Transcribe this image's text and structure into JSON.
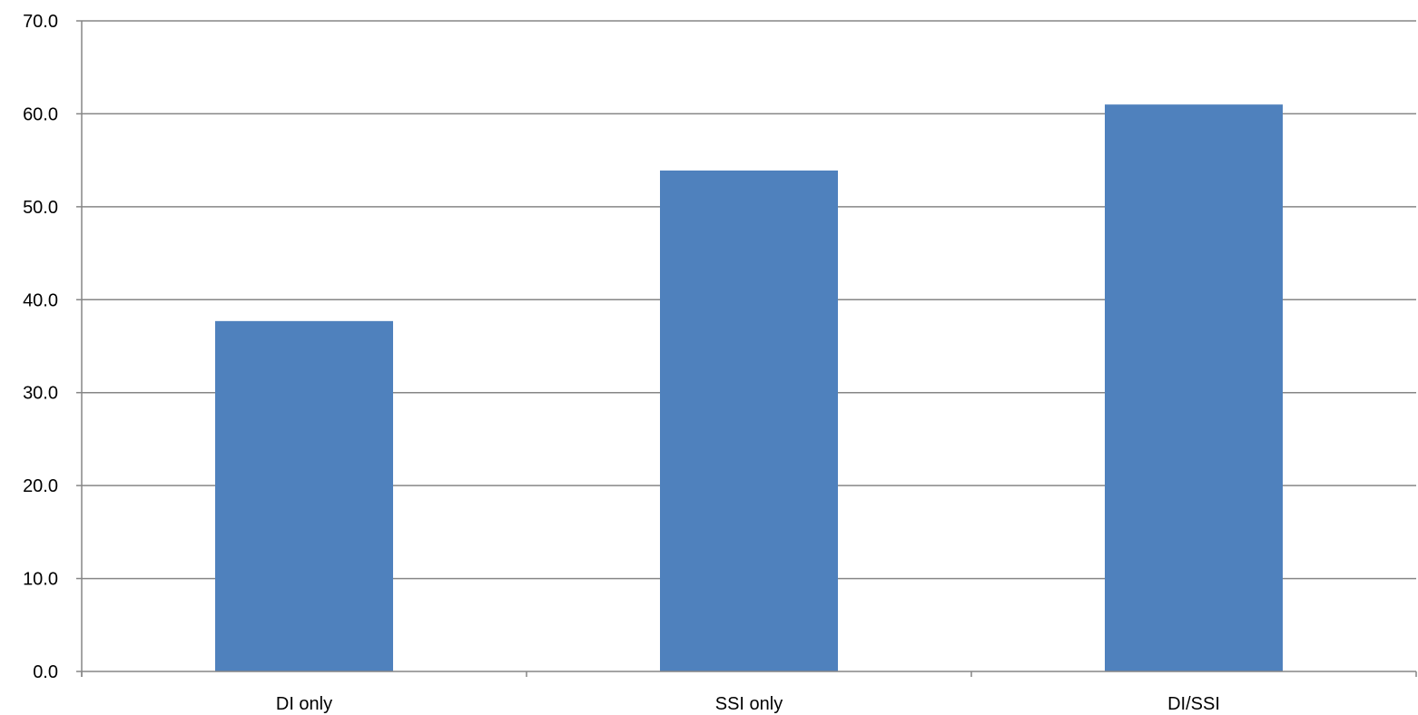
{
  "chart_data": {
    "type": "bar",
    "categories": [
      "DI only",
      "SSI only",
      "DI/SSI"
    ],
    "values": [
      37.7,
      53.9,
      61.0
    ],
    "title": "",
    "xlabel": "",
    "ylabel": "",
    "ylim": [
      0,
      70
    ],
    "yticks": [
      "0.0",
      "10.0",
      "20.0",
      "30.0",
      "40.0",
      "50.0",
      "60.0",
      "70.0"
    ],
    "grid": true,
    "legend": "none",
    "colors": {
      "bar": "#4F81BD",
      "grid": "#868686",
      "axis": "#868686",
      "text": "#000000"
    }
  }
}
